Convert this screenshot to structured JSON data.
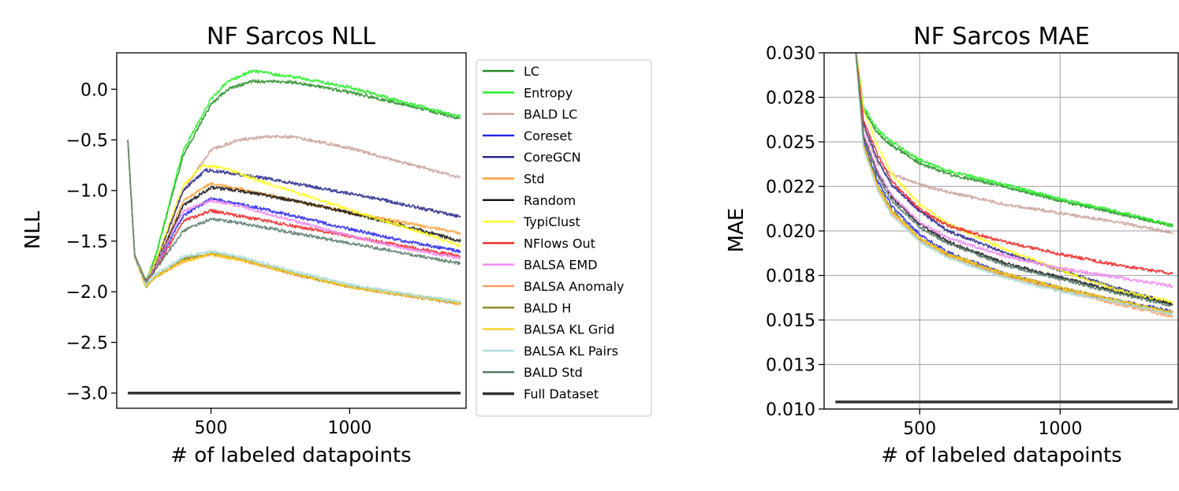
{
  "charts": [
    {
      "type": "line",
      "title": "NF Sarcos NLL",
      "xlabel": "# of labeled datapoints",
      "ylabel": "NLL",
      "xlim": [
        160,
        1420
      ],
      "ylim": [
        -3.15,
        0.36
      ],
      "xticks": [
        500,
        1000
      ],
      "xtick_labels": [
        "500",
        "1000"
      ],
      "yticks": [
        0.0,
        -0.5,
        -1.0,
        -1.5,
        -2.0,
        -2.5,
        -3.0
      ],
      "ytick_labels": [
        "0.0",
        "−0.5",
        "−1.0",
        "−1.5",
        "−2.0",
        "−2.5",
        "−3.0"
      ],
      "grid": false,
      "legend_position": "right-outside",
      "series": [
        {
          "name": "LC",
          "color": "#228b22",
          "x": [
            200,
            225,
            265,
            300,
            400,
            500,
            560,
            650,
            800,
            1000,
            1200,
            1400
          ],
          "y": [
            -0.5,
            -1.65,
            -1.9,
            -1.65,
            -0.65,
            -0.15,
            0.0,
            0.08,
            0.07,
            -0.03,
            -0.15,
            -0.29
          ]
        },
        {
          "name": "Entropy",
          "color": "#22ee22",
          "x": [
            200,
            225,
            265,
            300,
            400,
            500,
            560,
            650,
            800,
            1000,
            1200,
            1400
          ],
          "y": [
            -0.5,
            -1.65,
            -1.9,
            -1.65,
            -0.6,
            -0.1,
            0.08,
            0.18,
            0.12,
            0.02,
            -0.13,
            -0.27
          ]
        },
        {
          "name": "BALD LC",
          "color": "#c8a09a",
          "x": [
            200,
            225,
            265,
            300,
            400,
            500,
            600,
            700,
            800,
            1000,
            1200,
            1400
          ],
          "y": [
            -0.5,
            -1.65,
            -1.9,
            -1.7,
            -1.0,
            -0.6,
            -0.5,
            -0.47,
            -0.47,
            -0.58,
            -0.73,
            -0.87
          ]
        },
        {
          "name": "Coreset",
          "color": "#2222ee",
          "x": [
            200,
            225,
            265,
            300,
            400,
            500,
            600,
            800,
            1000,
            1200,
            1400
          ],
          "y": [
            -0.5,
            -1.65,
            -1.9,
            -1.75,
            -1.25,
            -1.08,
            -1.13,
            -1.25,
            -1.38,
            -1.5,
            -1.6
          ]
        },
        {
          "name": "CoreGCN",
          "color": "#222288",
          "x": [
            200,
            225,
            265,
            300,
            400,
            480,
            550,
            700,
            900,
            1100,
            1300,
            1400
          ],
          "y": [
            -0.5,
            -1.65,
            -1.9,
            -1.72,
            -1.0,
            -0.8,
            -0.82,
            -0.88,
            -0.98,
            -1.08,
            -1.2,
            -1.26
          ]
        },
        {
          "name": "Std",
          "color": "#ffa033",
          "x": [
            200,
            225,
            265,
            300,
            400,
            500,
            600,
            800,
            1000,
            1200,
            1400
          ],
          "y": [
            -0.5,
            -1.65,
            -1.9,
            -1.75,
            -1.1,
            -0.93,
            -0.98,
            -1.1,
            -1.22,
            -1.32,
            -1.42
          ]
        },
        {
          "name": "Random",
          "color": "#111111",
          "x": [
            200,
            225,
            265,
            300,
            400,
            500,
            600,
            800,
            1000,
            1200,
            1400
          ],
          "y": [
            -0.5,
            -1.65,
            -1.9,
            -1.75,
            -1.15,
            -0.97,
            -1.0,
            -1.1,
            -1.22,
            -1.35,
            -1.5
          ]
        },
        {
          "name": "TypiClust",
          "color": "#ffff22",
          "x": [
            200,
            225,
            265,
            300,
            400,
            470,
            550,
            700,
            900,
            1100,
            1300,
            1400
          ],
          "y": [
            -0.5,
            -1.65,
            -1.9,
            -1.7,
            -0.95,
            -0.75,
            -0.78,
            -0.93,
            -1.1,
            -1.28,
            -1.45,
            -1.55
          ]
        },
        {
          "name": "NFlows Out",
          "color": "#ee2222",
          "x": [
            200,
            225,
            265,
            300,
            400,
            500,
            600,
            800,
            1000,
            1200,
            1400
          ],
          "y": [
            -0.5,
            -1.65,
            -1.9,
            -1.78,
            -1.3,
            -1.2,
            -1.25,
            -1.35,
            -1.45,
            -1.55,
            -1.65
          ]
        },
        {
          "name": "BALSA EMD",
          "color": "#ee88ee",
          "x": [
            200,
            225,
            265,
            300,
            400,
            500,
            600,
            800,
            1000,
            1200,
            1400
          ],
          "y": [
            -0.5,
            -1.65,
            -1.9,
            -1.75,
            -1.2,
            -1.1,
            -1.15,
            -1.3,
            -1.45,
            -1.57,
            -1.67
          ]
        },
        {
          "name": "BALSA Anomaly",
          "color": "#ff9966",
          "x": [
            200,
            225,
            265,
            300,
            400,
            500,
            600,
            800,
            1000,
            1200,
            1400
          ],
          "y": [
            -0.5,
            -1.65,
            -1.95,
            -1.85,
            -1.7,
            -1.63,
            -1.68,
            -1.83,
            -1.95,
            -2.04,
            -2.12
          ]
        },
        {
          "name": "BALD H",
          "color": "#888822",
          "x": [
            200,
            225,
            265,
            300,
            400,
            500,
            600,
            800,
            1000,
            1200,
            1400
          ],
          "y": [
            -0.5,
            -1.65,
            -1.95,
            -1.85,
            -1.68,
            -1.62,
            -1.67,
            -1.82,
            -1.95,
            -2.03,
            -2.11
          ]
        },
        {
          "name": "BALSA KL Grid",
          "color": "#ffd022",
          "x": [
            200,
            225,
            265,
            300,
            400,
            500,
            600,
            800,
            1000,
            1200,
            1400
          ],
          "y": [
            -0.5,
            -1.65,
            -1.95,
            -1.85,
            -1.7,
            -1.63,
            -1.68,
            -1.82,
            -1.95,
            -2.03,
            -2.11
          ]
        },
        {
          "name": "BALSA KL Pairs",
          "color": "#aadddd",
          "x": [
            200,
            225,
            265,
            300,
            400,
            500,
            600,
            800,
            1000,
            1200,
            1400
          ],
          "y": [
            -0.5,
            -1.65,
            -1.93,
            -1.83,
            -1.65,
            -1.6,
            -1.65,
            -1.8,
            -1.93,
            -2.02,
            -2.1
          ]
        },
        {
          "name": "BALD Std",
          "color": "#557766",
          "x": [
            200,
            225,
            265,
            300,
            400,
            500,
            600,
            800,
            1000,
            1200,
            1400
          ],
          "y": [
            -0.5,
            -1.65,
            -1.9,
            -1.78,
            -1.4,
            -1.28,
            -1.32,
            -1.42,
            -1.52,
            -1.62,
            -1.72
          ]
        },
        {
          "name": "Full Dataset",
          "color": "#333333",
          "x": [
            200,
            1400
          ],
          "y": [
            -3.0,
            -3.0
          ],
          "width": 3.5,
          "noise": 0
        }
      ]
    },
    {
      "type": "line",
      "title": "NF Sarcos MAE",
      "xlabel": "# of labeled datapoints",
      "ylabel": "MAE",
      "xlim": [
        160,
        1420
      ],
      "ylim": [
        0.01,
        0.03
      ],
      "xticks": [
        500,
        1000
      ],
      "xtick_labels": [
        "500",
        "1000"
      ],
      "yticks": [
        0.01,
        0.0125,
        0.015,
        0.0175,
        0.02,
        0.0225,
        0.025,
        0.0275,
        0.03
      ],
      "ytick_labels": [
        "0.010",
        "0.013",
        "0.015",
        "0.018",
        "0.020",
        "0.022",
        "0.025",
        "0.028",
        "0.030"
      ],
      "grid": true,
      "series": [
        {
          "name": "LC",
          "color": "#228b22",
          "x": [
            270,
            300,
            350,
            400,
            500,
            600,
            800,
            1000,
            1200,
            1400
          ],
          "y": [
            0.0305,
            0.0268,
            0.0255,
            0.0248,
            0.0238,
            0.0232,
            0.0225,
            0.0217,
            0.021,
            0.0203
          ]
        },
        {
          "name": "Entropy",
          "color": "#22ee22",
          "x": [
            270,
            300,
            350,
            400,
            500,
            600,
            800,
            1000,
            1200,
            1400
          ],
          "y": [
            0.0305,
            0.027,
            0.0257,
            0.025,
            0.024,
            0.0234,
            0.0226,
            0.0218,
            0.0211,
            0.0203
          ]
        },
        {
          "name": "BALD LC",
          "color": "#c8a09a",
          "x": [
            270,
            300,
            350,
            400,
            500,
            600,
            800,
            1000,
            1200,
            1400
          ],
          "y": [
            0.0305,
            0.0258,
            0.0238,
            0.0232,
            0.0226,
            0.0222,
            0.0215,
            0.021,
            0.0205,
            0.0199
          ]
        },
        {
          "name": "Coreset",
          "color": "#2222ee",
          "x": [
            270,
            300,
            350,
            400,
            500,
            600,
            800,
            1000,
            1200,
            1400
          ],
          "y": [
            0.0305,
            0.025,
            0.0228,
            0.0214,
            0.0198,
            0.0188,
            0.0176,
            0.0168,
            0.0161,
            0.0155
          ]
        },
        {
          "name": "CoreGCN",
          "color": "#222288",
          "x": [
            270,
            300,
            350,
            400,
            500,
            600,
            800,
            1000,
            1200,
            1400
          ],
          "y": [
            0.0305,
            0.026,
            0.024,
            0.0226,
            0.0211,
            0.02,
            0.0188,
            0.0178,
            0.0168,
            0.0159
          ]
        },
        {
          "name": "Std",
          "color": "#ffa033",
          "x": [
            270,
            300,
            350,
            400,
            500,
            600,
            800,
            1000,
            1200,
            1400
          ],
          "y": [
            0.0305,
            0.0248,
            0.0224,
            0.0211,
            0.0195,
            0.0186,
            0.0175,
            0.0167,
            0.016,
            0.0153
          ]
        },
        {
          "name": "Random",
          "color": "#111111",
          "x": [
            270,
            300,
            350,
            400,
            500,
            600,
            800,
            1000,
            1200,
            1400
          ],
          "y": [
            0.0305,
            0.0253,
            0.0233,
            0.0219,
            0.0204,
            0.0194,
            0.0182,
            0.0174,
            0.0166,
            0.0159
          ]
        },
        {
          "name": "TypiClust",
          "color": "#ffff22",
          "x": [
            270,
            300,
            350,
            400,
            500,
            600,
            800,
            1000,
            1200,
            1400
          ],
          "y": [
            0.0305,
            0.0268,
            0.0248,
            0.0232,
            0.0215,
            0.0204,
            0.019,
            0.0178,
            0.0167,
            0.016
          ]
        },
        {
          "name": "NFlows Out",
          "color": "#ee2222",
          "x": [
            270,
            300,
            350,
            400,
            500,
            600,
            800,
            1000,
            1200,
            1400
          ],
          "y": [
            0.0305,
            0.0262,
            0.0243,
            0.0228,
            0.0212,
            0.0203,
            0.0194,
            0.0187,
            0.0181,
            0.0176
          ]
        },
        {
          "name": "BALSA EMD",
          "color": "#ee88ee",
          "x": [
            270,
            300,
            350,
            400,
            500,
            600,
            800,
            1000,
            1200,
            1400
          ],
          "y": [
            0.0305,
            0.0255,
            0.0234,
            0.022,
            0.0205,
            0.0196,
            0.0186,
            0.0179,
            0.0174,
            0.0169
          ]
        },
        {
          "name": "BALSA Anomaly",
          "color": "#ff9966",
          "x": [
            270,
            300,
            350,
            400,
            500,
            600,
            800,
            1000,
            1200,
            1400
          ],
          "y": [
            0.0305,
            0.0247,
            0.0224,
            0.021,
            0.0195,
            0.0186,
            0.0175,
            0.0167,
            0.0159,
            0.0152
          ]
        },
        {
          "name": "BALD H",
          "color": "#888822",
          "x": [
            270,
            300,
            350,
            400,
            500,
            600,
            800,
            1000,
            1200,
            1400
          ],
          "y": [
            0.0305,
            0.0249,
            0.0226,
            0.0212,
            0.0196,
            0.0187,
            0.0176,
            0.0168,
            0.0161,
            0.0154
          ]
        },
        {
          "name": "BALSA KL Grid",
          "color": "#ffd022",
          "x": [
            270,
            300,
            350,
            400,
            500,
            600,
            800,
            1000,
            1200,
            1400
          ],
          "y": [
            0.0305,
            0.0248,
            0.0225,
            0.0211,
            0.0196,
            0.0187,
            0.0176,
            0.0168,
            0.0161,
            0.0154
          ]
        },
        {
          "name": "BALSA KL Pairs",
          "color": "#aadddd",
          "x": [
            270,
            300,
            350,
            400,
            500,
            600,
            800,
            1000,
            1200,
            1400
          ],
          "y": [
            0.0305,
            0.0246,
            0.0223,
            0.0209,
            0.0194,
            0.0185,
            0.0174,
            0.0166,
            0.016,
            0.0153
          ]
        },
        {
          "name": "BALD Std",
          "color": "#557766",
          "x": [
            270,
            300,
            350,
            400,
            500,
            600,
            800,
            1000,
            1200,
            1400
          ],
          "y": [
            0.0305,
            0.0252,
            0.0231,
            0.0217,
            0.0202,
            0.0193,
            0.0181,
            0.0173,
            0.0165,
            0.0158
          ]
        },
        {
          "name": "Full Dataset",
          "color": "#333333",
          "x": [
            200,
            1400
          ],
          "y": [
            0.0104,
            0.0104
          ],
          "width": 3.5,
          "noise": 0
        }
      ]
    }
  ]
}
